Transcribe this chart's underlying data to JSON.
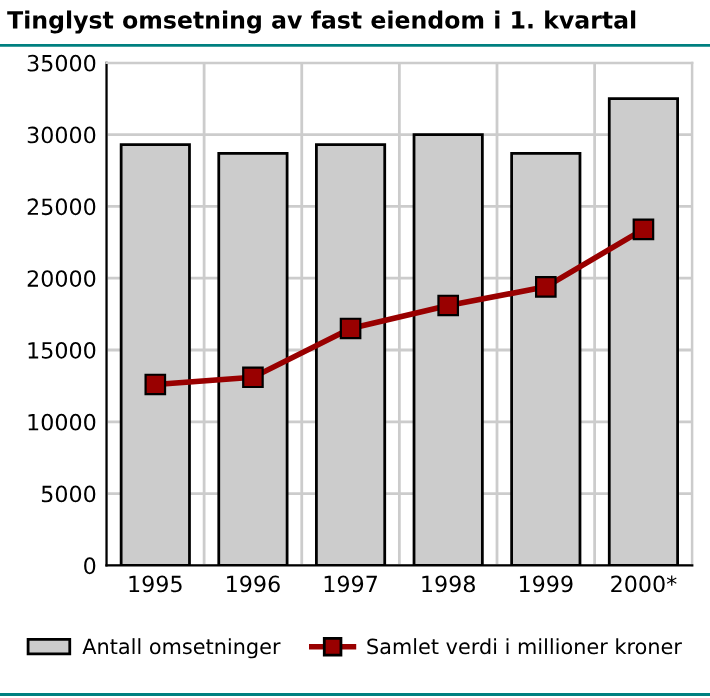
{
  "chart_data": {
    "type": "bar",
    "title": "Tinglyst omsetning av fast eiendom i 1. kvartal",
    "categories": [
      "1995",
      "1996",
      "1997",
      "1998",
      "1999",
      "2000*"
    ],
    "series": [
      {
        "name": "Antall omsetninger",
        "color": "#cccccc",
        "values": [
          29300,
          28700,
          29300,
          30000,
          28700,
          32500
        ]
      },
      {
        "name": "Samlet verdi i millioner kroner",
        "type": "line",
        "color": "#990000",
        "values": [
          12600,
          13100,
          16500,
          18100,
          19400,
          23400
        ]
      }
    ],
    "ylim": [
      0,
      35000
    ],
    "yticks": [
      0,
      5000,
      10000,
      15000,
      20000,
      25000,
      30000,
      35000
    ],
    "grid": true,
    "legend": "bottom",
    "marker": "square",
    "line_style": "solid"
  }
}
